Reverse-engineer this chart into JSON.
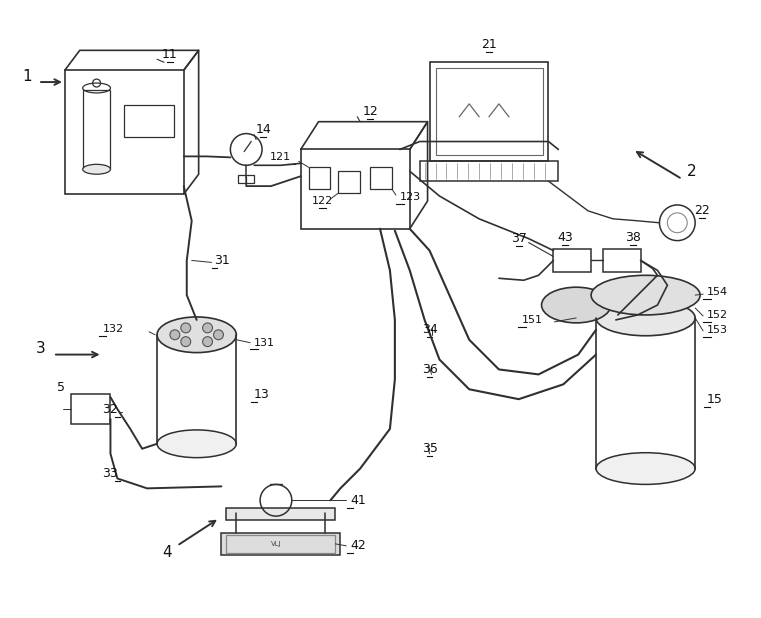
{
  "bg_color": "#ffffff",
  "lc": "#303030",
  "fig_width": 7.61,
  "fig_height": 6.18,
  "dpi": 100
}
